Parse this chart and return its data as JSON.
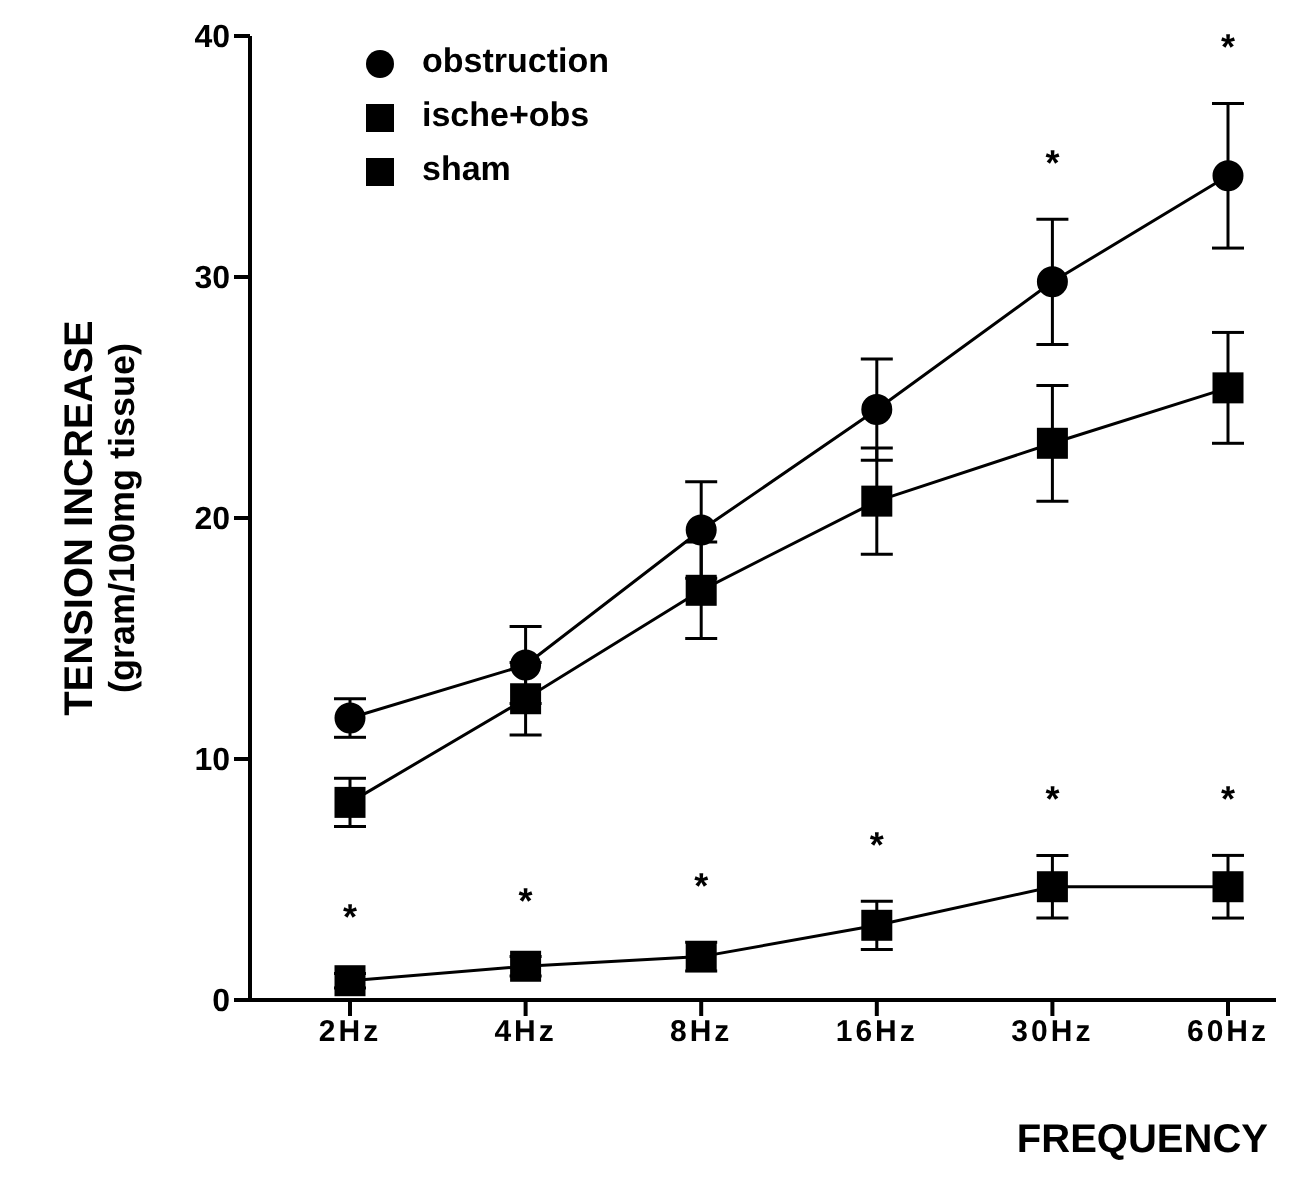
{
  "chart_data": {
    "type": "line",
    "xlabel": "FREQUENCY",
    "ylabel": "TENSION INCREASE\n(gram/100mg tissue)",
    "categories": [
      "2Hz",
      "4Hz",
      "8Hz",
      "16Hz",
      "30Hz",
      "60Hz"
    ],
    "series": [
      {
        "name": "obstruction",
        "color": "#000000",
        "marker": "circle",
        "values": [
          11.7,
          13.9,
          19.5,
          24.5,
          29.8,
          34.2
        ],
        "errors": [
          0.8,
          1.6,
          2,
          2.1,
          2.6,
          3
        ],
        "value_labels": [
          null,
          null,
          null,
          null,
          "*",
          "*"
        ]
      },
      {
        "name": "ische+obs",
        "color": "#000000",
        "marker": "square",
        "values": [
          0.8,
          1.4,
          1.8,
          3.1,
          4.7,
          4.7
        ],
        "errors": [
          0.3,
          0.4,
          0.6,
          1,
          1.3,
          1.3
        ],
        "value_labels": [
          "*",
          "*",
          "*",
          "*",
          "*",
          "*"
        ]
      },
      {
        "name": "sham",
        "color": "#000000",
        "marker": "square",
        "values": [
          8.2,
          12.5,
          17,
          20.7,
          23.1,
          25.4
        ],
        "errors": [
          1,
          1.5,
          2,
          2.2,
          2.4,
          2.3
        ]
      }
    ],
    "ylim": [
      0,
      40
    ],
    "yticks": [
      0,
      10,
      20,
      30,
      40
    ],
    "grid": false,
    "legend": "top left",
    "line_style": "solid"
  }
}
